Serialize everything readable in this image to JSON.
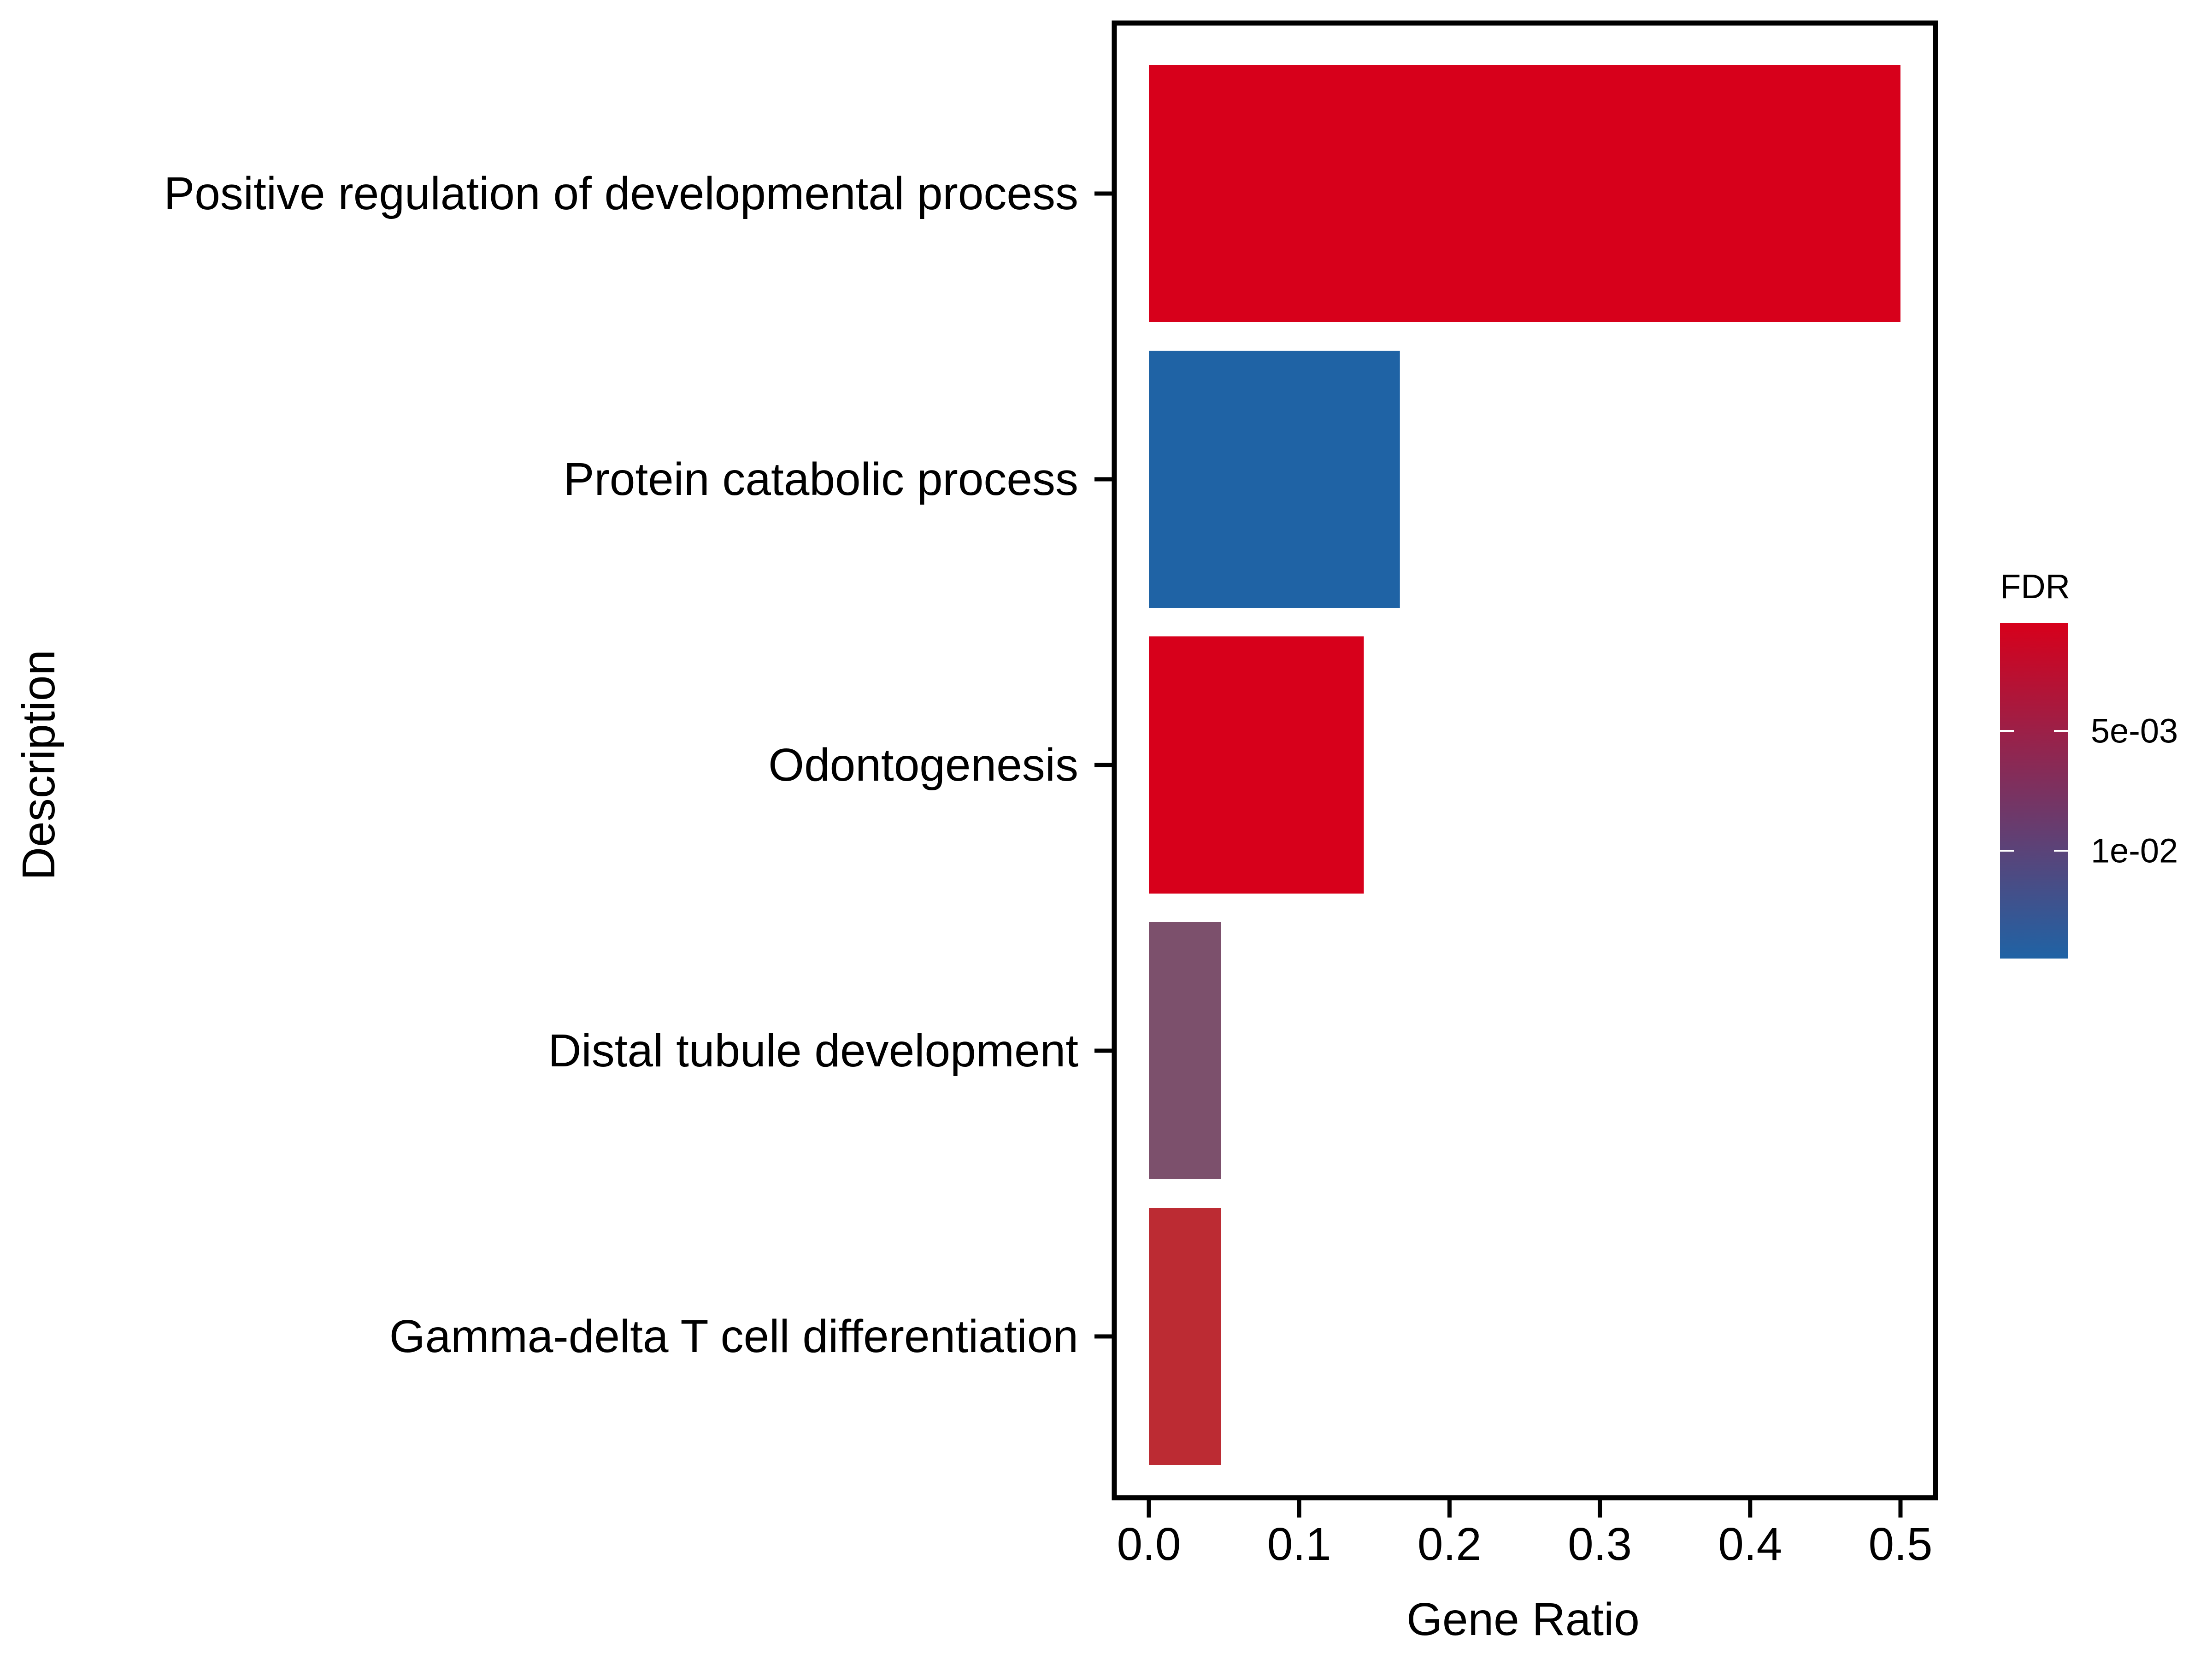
{
  "chart_data": {
    "type": "bar",
    "orientation": "horizontal",
    "categories": [
      "Positive regulation of developmental process",
      "Protein catabolic process",
      "Odontogenesis",
      "Distal tubule development",
      "Gamma-delta T cell differentiation"
    ],
    "values": [
      0.5,
      0.167,
      0.143,
      0.048,
      0.048
    ],
    "fdr": [
      0.0005,
      0.0145,
      0.0005,
      0.0112,
      0.0052
    ],
    "colors": [
      "#D7001B",
      "#1F63A5",
      "#D7001B",
      "#7C506C",
      "#BC2B33"
    ],
    "xlabel": "Gene Ratio",
    "ylabel": "Description",
    "xlim": [
      0,
      0.5
    ],
    "xticks": [
      "0.0",
      "0.1",
      "0.2",
      "0.3",
      "0.4",
      "0.5"
    ],
    "grid": false,
    "legend": {
      "title": "FDR",
      "placement": "right",
      "range": [
        0.0005,
        0.0145
      ],
      "low_color": "#D7001B",
      "high_color": "#1F63A5",
      "ticks": [
        {
          "label": "5e-03",
          "value": 0.005
        },
        {
          "label": "1e-02",
          "value": 0.01
        }
      ]
    }
  }
}
